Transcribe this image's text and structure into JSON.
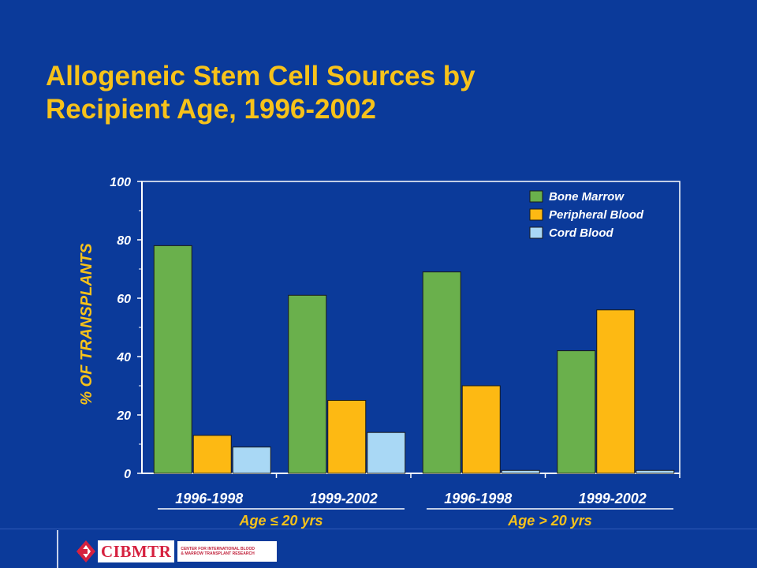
{
  "slide": {
    "title_line1": "Allogeneic Stem Cell Sources by",
    "title_line2": "Recipient Age, 1996-2002"
  },
  "colors": {
    "background": "#0b3a9a",
    "title": "#f7c21a",
    "bone_marrow": "#6ab04c",
    "peripheral_blood": "#fdb913",
    "cord_blood": "#a9d8f5"
  },
  "chart_data": {
    "type": "bar",
    "title": "",
    "ylabel": "% OF TRANSPLANTS",
    "xlabel": "",
    "ylim": [
      0,
      100
    ],
    "yticks": [
      "0",
      "20",
      "40",
      "60",
      "80",
      "100"
    ],
    "categories": [
      "1996-1998",
      "1999-2002",
      "1996-1998",
      "1999-2002"
    ],
    "groups": [
      {
        "label": "Age ≤ 20 yrs",
        "categories": [
          0,
          1
        ]
      },
      {
        "label": "Age > 20 yrs",
        "categories": [
          2,
          3
        ]
      }
    ],
    "series": [
      {
        "name": "Bone Marrow",
        "values": [
          78,
          61,
          69,
          42
        ]
      },
      {
        "name": "Peripheral Blood",
        "values": [
          13,
          25,
          30,
          56
        ]
      },
      {
        "name": "Cord Blood",
        "values": [
          9,
          14,
          1,
          1
        ]
      }
    ],
    "legend_position": "top-right",
    "grid": false
  },
  "footer": {
    "logo_text": "CIBMTR",
    "logo_subtext_1": "CENTER FOR INTERNATIONAL BLOOD",
    "logo_subtext_2": "& MARROW TRANSPLANT RESEARCH"
  }
}
